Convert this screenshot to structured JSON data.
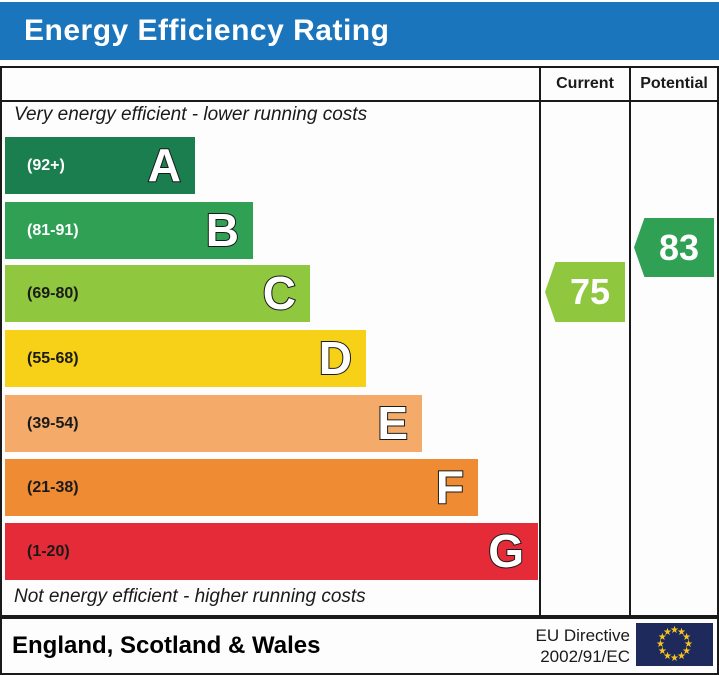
{
  "title": "Energy Efficiency Rating",
  "table": {
    "current_label": "Current",
    "potential_label": "Potential"
  },
  "notes": {
    "top": "Very energy efficient - lower running costs",
    "bottom": "Not energy efficient - higher running costs"
  },
  "footer": {
    "region": "England, Scotland & Wales",
    "directive_line1": "EU Directive",
    "directive_line2": "2002/91/EC",
    "flag_name": "eu-flag"
  },
  "colors": {
    "title_bar": "#1b75bc",
    "border": "#1a1a1a",
    "current_arrow": "#8fc73e",
    "potential_arrow": "#2fa054",
    "eu_flag_blue": "#1e2a5c",
    "eu_flag_star": "#f7c51e"
  },
  "chart_data": {
    "type": "bar",
    "title": "Energy Efficiency Rating",
    "bands": [
      {
        "letter": "A",
        "range_label": "(92+)",
        "range": [
          92,
          100
        ],
        "color": "#1b7e4e",
        "text_color": "#ffffff"
      },
      {
        "letter": "B",
        "range_label": "(81-91)",
        "range": [
          81,
          91
        ],
        "color": "#2fa054",
        "text_color": "#ffffff"
      },
      {
        "letter": "C",
        "range_label": "(69-80)",
        "range": [
          69,
          80
        ],
        "color": "#8fc73e",
        "text_color": "#1a1a1a"
      },
      {
        "letter": "D",
        "range_label": "(55-68)",
        "range": [
          55,
          68
        ],
        "color": "#f7d117",
        "text_color": "#1a1a1a"
      },
      {
        "letter": "E",
        "range_label": "(39-54)",
        "range": [
          39,
          54
        ],
        "color": "#f4aa69",
        "text_color": "#1a1a1a"
      },
      {
        "letter": "F",
        "range_label": "(21-38)",
        "range": [
          21,
          38
        ],
        "color": "#ee8b33",
        "text_color": "#1a1a1a"
      },
      {
        "letter": "G",
        "range_label": "(1-20)",
        "range": [
          1,
          20
        ],
        "color": "#e52b38",
        "text_color": "#1a1a1a"
      }
    ],
    "current": {
      "value": 75,
      "band": "C"
    },
    "potential": {
      "value": 83,
      "band": "B"
    }
  }
}
